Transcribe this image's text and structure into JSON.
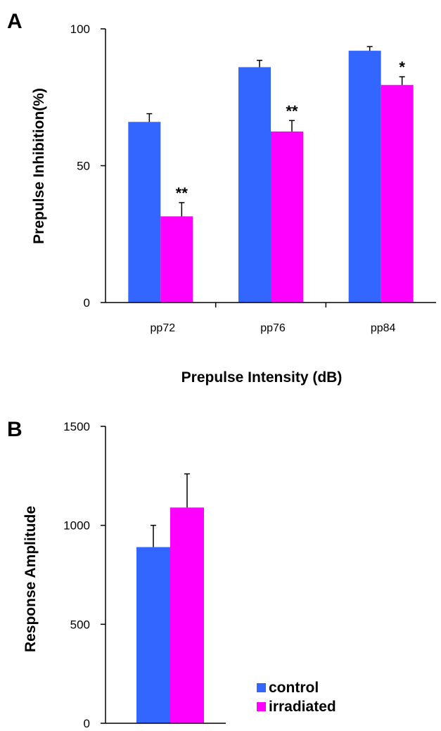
{
  "chart_data": [
    {
      "panel": "A",
      "type": "bar",
      "ylabel": "Prepulse Inhibition(%)",
      "xlabel": "Prepulse Intensity (dB)",
      "ylim": [
        0,
        100
      ],
      "yticks": [
        "0",
        "50",
        "100"
      ],
      "categories": [
        "pp72",
        "pp76",
        "pp84"
      ],
      "series": [
        {
          "name": "control",
          "color": "#3366ff",
          "values": [
            66,
            86,
            92
          ],
          "errors": [
            3,
            2.5,
            1.5
          ]
        },
        {
          "name": "irradiated",
          "color": "#ff00ff",
          "values": [
            31.5,
            62.5,
            79.5
          ],
          "errors": [
            5,
            4,
            3
          ]
        }
      ],
      "annotations": [
        "**",
        "**",
        "*"
      ]
    },
    {
      "panel": "B",
      "type": "bar",
      "ylabel": "Response Amplitude",
      "ylim": [
        0,
        1500
      ],
      "yticks": [
        "0",
        "500",
        "1000",
        "1500"
      ],
      "categories": [
        ""
      ],
      "series": [
        {
          "name": "control",
          "color": "#3366ff",
          "values": [
            890
          ],
          "errors": [
            110
          ]
        },
        {
          "name": "irradiated",
          "color": "#ff00ff",
          "values": [
            1090
          ],
          "errors": [
            170
          ]
        }
      ],
      "legend": {
        "position": "bottom-right",
        "entries": [
          "control",
          "irradiated"
        ]
      }
    }
  ]
}
